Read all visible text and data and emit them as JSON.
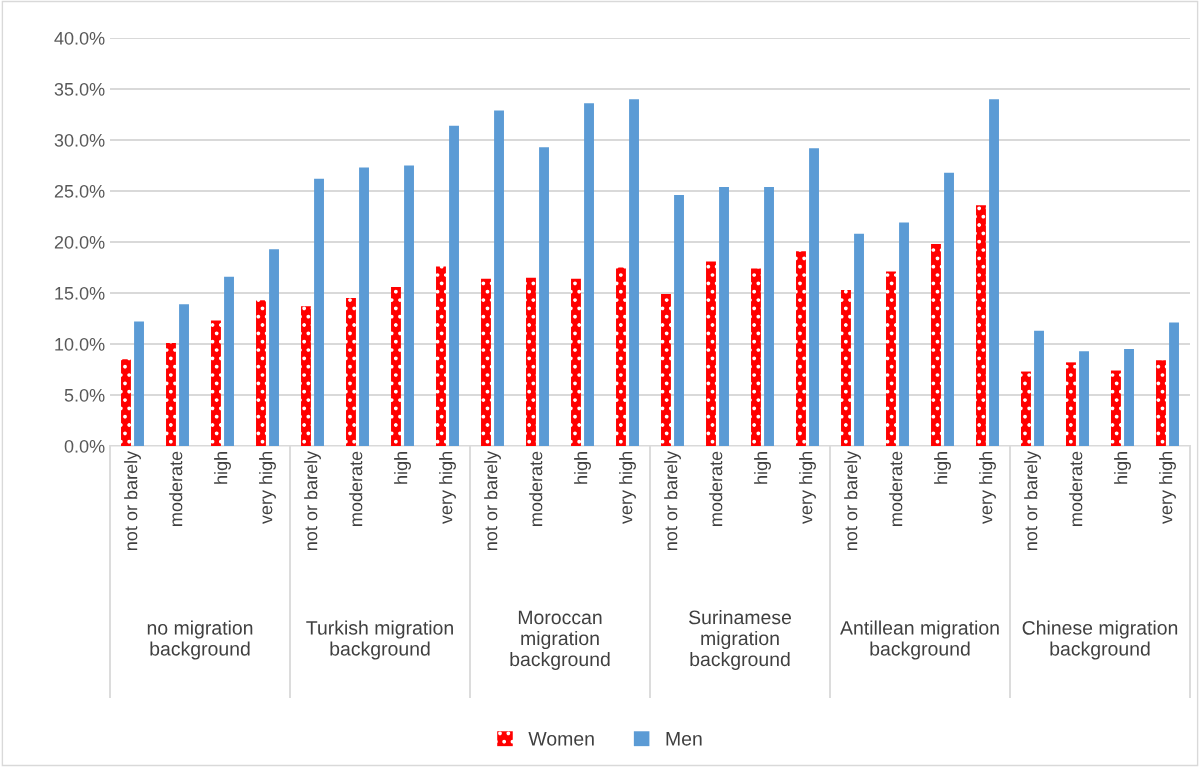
{
  "chart_data": {
    "type": "bar",
    "categories": [
      "not or barely",
      "moderate",
      "high",
      "very high",
      "not or barely",
      "moderate",
      "high",
      "very high",
      "not or barely",
      "moderate",
      "high",
      "very high",
      "not or barely",
      "moderate",
      "high",
      "very high",
      "not or barely",
      "moderate",
      "high",
      "very high",
      "not or barely",
      "moderate",
      "high",
      "very high"
    ],
    "annotations": [
      "no migration background",
      "Turkish migration background",
      "Moroccan migration background",
      "Surinamese migration background",
      "Antillean migration background",
      "Chinese migration background"
    ],
    "series": [
      {
        "name": "Women",
        "color": "#ff0000",
        "values": [
          8.5,
          10.1,
          12.3,
          14.3,
          13.7,
          14.5,
          15.6,
          17.6,
          16.4,
          16.5,
          16.4,
          17.5,
          14.9,
          18.1,
          17.4,
          19.1,
          15.3,
          17.1,
          19.8,
          23.6,
          7.3,
          8.2,
          7.4,
          8.4
        ]
      },
      {
        "name": "Men",
        "color": "#5b9bd5",
        "values": [
          12.2,
          13.9,
          16.6,
          19.3,
          26.2,
          27.3,
          27.5,
          31.4,
          32.9,
          29.3,
          33.6,
          34.0,
          24.6,
          25.4,
          25.4,
          29.2,
          20.8,
          21.9,
          26.8,
          34.0,
          11.3,
          9.3,
          9.5,
          12.1
        ]
      }
    ],
    "ylim": [
      0,
      40
    ],
    "yticks": [
      {
        "value": 0,
        "label": "0.0%"
      },
      {
        "value": 5,
        "label": "5.0%"
      },
      {
        "value": 10,
        "label": "10.0%"
      },
      {
        "value": 15,
        "label": "15.0%"
      },
      {
        "value": 20,
        "label": "20.0%"
      },
      {
        "value": 25,
        "label": "25.0%"
      },
      {
        "value": 30,
        "label": "30.0%"
      },
      {
        "value": 35,
        "label": "35.0%"
      },
      {
        "value": 40,
        "label": "40.0%"
      }
    ],
    "grid": "y",
    "legend": "bottom"
  }
}
